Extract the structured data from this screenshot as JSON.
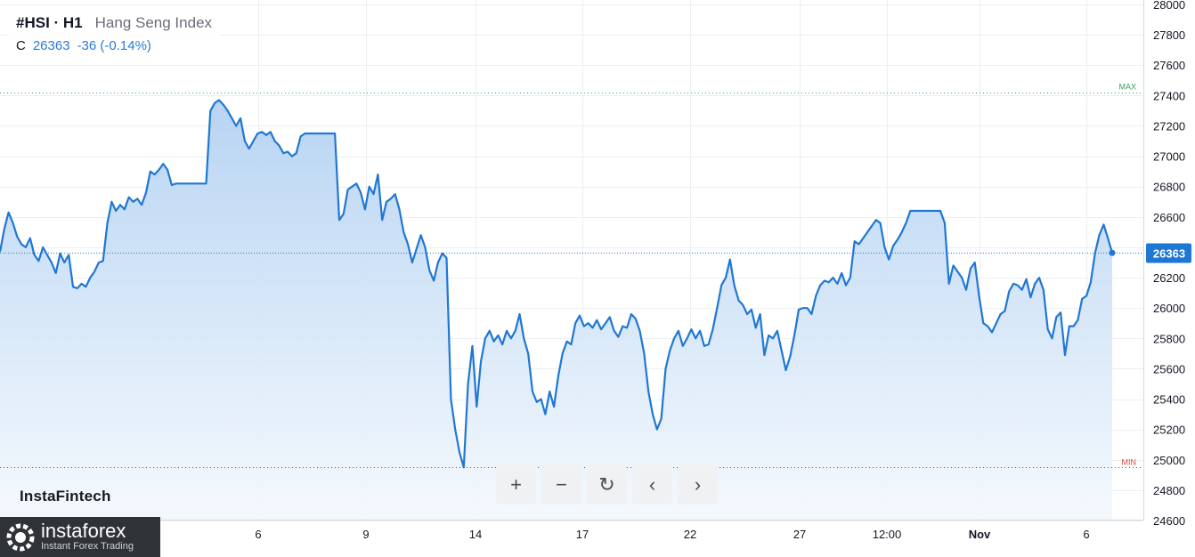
{
  "legend": {
    "symbol": "#HSI · H1",
    "description": "Hang Seng Index",
    "close_label": "C",
    "close_value": "26363",
    "change": "-36 (-0.14%)"
  },
  "brand": "InstaFintech",
  "logo": {
    "name": "instaforex",
    "tagline": "Instant Forex Trading"
  },
  "toolbar": {
    "zoom_in": "+",
    "zoom_out": "−",
    "reset": "↻",
    "prev": "‹",
    "next": "›"
  },
  "colors": {
    "line": "#1f77d4",
    "fill_top": "#b4d2f2",
    "fill_bottom": "#f3f8fd",
    "max": "#3aa35c",
    "min": "#e0473f",
    "last_price_bg": "#1f77d4"
  },
  "chart_data": {
    "type": "area",
    "title": "#HSI · H1 Hang Seng Index",
    "ylim": [
      24600,
      28000
    ],
    "y_ticks": [
      "28000",
      "27800",
      "27600",
      "27400",
      "27200",
      "27000",
      "26800",
      "26600",
      "26400",
      "26200",
      "26000",
      "25800",
      "25600",
      "25400",
      "25200",
      "25000",
      "24800",
      "24600"
    ],
    "x_ticks": [
      "6",
      "9",
      "14",
      "17",
      "22",
      "27",
      "12:00",
      "Nov",
      "6"
    ],
    "max_label": "MAX",
    "max_value": 27420,
    "min_label": "MIN",
    "min_value": 24950,
    "last_value": 26363,
    "last_label": "26363",
    "grid": true,
    "series": [
      {
        "values": [
          26370,
          26520,
          26630,
          26560,
          26470,
          26420,
          26400,
          26460,
          26350,
          26310,
          26400,
          26350,
          26300,
          26230,
          26360,
          26300,
          26350,
          26140,
          26130,
          26160,
          26140,
          26200,
          26240,
          26300,
          26310,
          26560,
          26700,
          26640,
          26680,
          26650,
          26730,
          26700,
          26720,
          26680,
          26760,
          26900,
          26880,
          26910,
          26950,
          26910,
          26810,
          26820,
          26820,
          26820,
          26820,
          26820,
          26820,
          26820,
          26820,
          27300,
          27350,
          27370,
          27340,
          27300,
          27250,
          27200,
          27250,
          27100,
          27050,
          27100,
          27150,
          27160,
          27140,
          27160,
          27100,
          27070,
          27020,
          27030,
          27000,
          27020,
          27130,
          27150,
          27150,
          27150,
          27150,
          27150,
          27150,
          27150,
          27150,
          26580,
          26620,
          26780,
          26800,
          26820,
          26760,
          26650,
          26800,
          26750,
          26880,
          26580,
          26700,
          26720,
          26750,
          26650,
          26500,
          26420,
          26300,
          26390,
          26480,
          26400,
          26250,
          26180,
          26300,
          26360,
          26330,
          25400,
          25200,
          25050,
          24950,
          25500,
          25750,
          25350,
          25650,
          25800,
          25850,
          25780,
          25820,
          25760,
          25850,
          25800,
          25850,
          25960,
          25800,
          25700,
          25450,
          25380,
          25400,
          25300,
          25450,
          25350,
          25550,
          25700,
          25780,
          25760,
          25900,
          25950,
          25880,
          25900,
          25870,
          25920,
          25860,
          25900,
          25940,
          25850,
          25810,
          25880,
          25870,
          25960,
          25930,
          25850,
          25700,
          25450,
          25300,
          25200,
          25270,
          25600,
          25720,
          25800,
          25850,
          25750,
          25800,
          25860,
          25800,
          25850,
          25750,
          25760,
          25860,
          26000,
          26150,
          26200,
          26320,
          26150,
          26050,
          26020,
          25960,
          25990,
          25870,
          25960,
          25690,
          25820,
          25800,
          25850,
          25720,
          25590,
          25680,
          25820,
          25990,
          26000,
          26000,
          25960,
          26080,
          26150,
          26180,
          26170,
          26200,
          26160,
          26230,
          26150,
          26200,
          26440,
          26420,
          26460,
          26500,
          26540,
          26580,
          26560,
          26400,
          26320,
          26410,
          26450,
          26500,
          26560,
          26640,
          26640,
          26640,
          26640,
          26640,
          26640,
          26640,
          26640,
          26560,
          26160,
          26280,
          26240,
          26200,
          26120,
          26260,
          26300,
          26080,
          25900,
          25880,
          25840,
          25900,
          25960,
          25980,
          26110,
          26160,
          26150,
          26120,
          26190,
          26070,
          26160,
          26200,
          26120,
          25860,
          25800,
          25940,
          25970,
          25690,
          25880,
          25880,
          25920,
          26060,
          26080,
          26170,
          26360,
          26480,
          26550,
          26460,
          26363
        ]
      }
    ]
  }
}
